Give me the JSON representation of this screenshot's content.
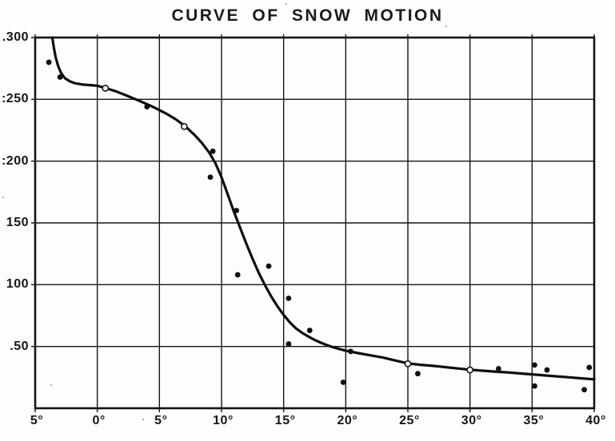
{
  "page": {
    "paper_color": "#fdfdfb",
    "ink_color": "#151515"
  },
  "chart_data": {
    "type": "scatter",
    "title": "CURVE OF SNOW MOTION",
    "xlabel": "",
    "ylabel": "",
    "xlim": [
      -5,
      40
    ],
    "ylim": [
      0,
      300
    ],
    "grid": true,
    "legend": "none",
    "x_ticks": [
      {
        "value": -5,
        "label": "5°"
      },
      {
        "value": 0,
        "label": "0°"
      },
      {
        "value": 5,
        "label": "5°"
      },
      {
        "value": 10,
        "label": "10°"
      },
      {
        "value": 15,
        "label": "15°"
      },
      {
        "value": 20,
        "label": "20°"
      },
      {
        "value": 25,
        "label": "25°"
      },
      {
        "value": 30,
        "label": "30°"
      },
      {
        "value": 35,
        "label": "35°"
      },
      {
        "value": 40,
        "label": "40°"
      }
    ],
    "y_ticks": [
      {
        "value": 300,
        "label": ".300"
      },
      {
        "value": 250,
        "label": ":250"
      },
      {
        "value": 200,
        "label": ":200"
      },
      {
        "value": 150,
        "label": "150"
      },
      {
        "value": 100,
        "label": "100"
      },
      {
        "value": 50,
        "label": ".50"
      }
    ],
    "series": [
      {
        "name": "observations",
        "marker": "filled-dot",
        "points": [
          [
            -3.9,
            280
          ],
          [
            -3.0,
            268
          ],
          [
            4.0,
            244
          ],
          [
            9.1,
            187
          ],
          [
            9.3,
            208
          ],
          [
            11.2,
            160
          ],
          [
            11.3,
            108
          ],
          [
            13.8,
            115
          ],
          [
            15.4,
            89
          ],
          [
            15.4,
            52
          ],
          [
            17.1,
            63
          ],
          [
            19.8,
            21
          ],
          [
            20.4,
            46
          ],
          [
            25.8,
            28
          ],
          [
            32.3,
            32
          ],
          [
            35.2,
            35
          ],
          [
            35.2,
            18
          ],
          [
            36.2,
            31
          ],
          [
            39.2,
            15
          ],
          [
            39.6,
            33
          ]
        ]
      },
      {
        "name": "curve-markers",
        "marker": "open-circle",
        "points": [
          [
            0.65,
            259
          ],
          [
            7.0,
            228
          ],
          [
            25.0,
            36
          ],
          [
            30.0,
            31
          ]
        ]
      }
    ],
    "fitted_curve": [
      [
        -3.62,
        300
      ],
      [
        -3.5,
        292
      ],
      [
        -3.35,
        284
      ],
      [
        -3.15,
        277
      ],
      [
        -2.9,
        271
      ],
      [
        -2.6,
        267
      ],
      [
        -2.2,
        264.5
      ],
      [
        -1.8,
        263
      ],
      [
        -1.2,
        262
      ],
      [
        -0.6,
        261.5
      ],
      [
        0,
        261
      ],
      [
        0.7,
        259
      ],
      [
        1.5,
        256.5
      ],
      [
        2.5,
        252.5
      ],
      [
        3.5,
        248.3
      ],
      [
        4.5,
        243.8
      ],
      [
        5.5,
        238.7
      ],
      [
        6.3,
        234
      ],
      [
        7.1,
        228
      ],
      [
        7.8,
        221.5
      ],
      [
        8.4,
        215
      ],
      [
        9,
        207
      ],
      [
        9.5,
        198.5
      ],
      [
        10,
        187
      ],
      [
        10.5,
        173
      ],
      [
        11,
        159
      ],
      [
        11.5,
        146
      ],
      [
        12,
        133
      ],
      [
        12.5,
        121
      ],
      [
        13,
        109.5
      ],
      [
        13.5,
        99.5
      ],
      [
        14,
        90.5
      ],
      [
        14.5,
        82.5
      ],
      [
        15,
        75.5
      ],
      [
        15.5,
        69.5
      ],
      [
        16,
        64.5
      ],
      [
        16.5,
        61
      ],
      [
        17,
        58
      ],
      [
        17.5,
        55.3
      ],
      [
        18,
        53
      ],
      [
        18.5,
        51
      ],
      [
        19,
        49.3
      ],
      [
        19.5,
        47.9
      ],
      [
        20,
        46.6
      ],
      [
        21,
        44.6
      ],
      [
        22,
        42.8
      ],
      [
        23,
        41
      ],
      [
        24,
        38.6
      ],
      [
        25,
        36.3
      ],
      [
        26,
        35.2
      ],
      [
        27,
        34.3
      ],
      [
        28,
        33.3
      ],
      [
        29,
        32.2
      ],
      [
        30,
        31.2
      ],
      [
        31,
        30.4
      ],
      [
        32,
        29.7
      ],
      [
        33,
        29
      ],
      [
        34,
        28.2
      ],
      [
        35,
        27.4
      ],
      [
        36,
        26.6
      ],
      [
        37,
        25.8
      ],
      [
        38,
        25
      ],
      [
        39,
        24.2
      ],
      [
        40,
        23.4
      ]
    ]
  }
}
